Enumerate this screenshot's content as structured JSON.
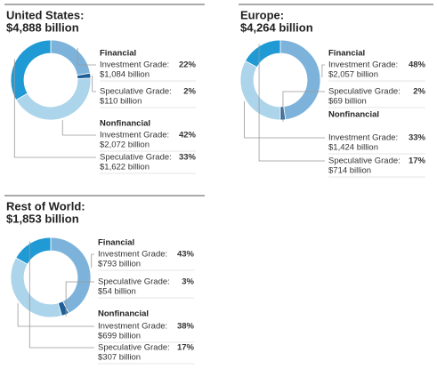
{
  "chart_data": [
    {
      "type": "donut",
      "title": "United States:",
      "subtitle": "$4,888 billion",
      "groups": [
        "Financial",
        "Nonfinancial"
      ],
      "categories": [
        "Investment Grade:",
        "Speculative Grade:",
        "Investment Grade:",
        "Speculative Grade:"
      ],
      "values": [
        22,
        2,
        42,
        33
      ],
      "value_labels": [
        "22%",
        "2%",
        "42%",
        "33%"
      ],
      "details": [
        "$1,084 billion",
        "$110 billion",
        "$2,072 billion",
        "$1,622 billion"
      ],
      "colors": [
        "#7db3db",
        "#1f5f99",
        "#acd4ea",
        "#1f9ad4"
      ]
    },
    {
      "type": "donut",
      "title": "Europe:",
      "subtitle": "$4,264 billion",
      "groups": [
        "Financial",
        "Nonfinancial"
      ],
      "categories": [
        "Investment Grade:",
        "Speculative Grade:",
        "Investment Grade:",
        "Speculative Grade:"
      ],
      "values": [
        48,
        2,
        33,
        17
      ],
      "value_labels": [
        "48%",
        "2%",
        "33%",
        "17%"
      ],
      "details": [
        "$2,057 billion",
        "$69 billion",
        "$1,424 billion",
        "$714 billion"
      ],
      "colors": [
        "#7db3db",
        "#1f5f99",
        "#acd4ea",
        "#1f9ad4"
      ]
    },
    {
      "type": "donut",
      "title": "Rest of World:",
      "subtitle": "$1,853 billion",
      "groups": [
        "Financial",
        "Nonfinancial"
      ],
      "categories": [
        "Investment Grade:",
        "Speculative Grade:",
        "Investment Grade:",
        "Speculative Grade:"
      ],
      "values": [
        43,
        3,
        38,
        17
      ],
      "value_labels": [
        "43%",
        "3%",
        "38%",
        "17%"
      ],
      "details": [
        "$793 billion",
        "$54 billion",
        "$699 billion",
        "$307 billion"
      ],
      "colors": [
        "#7db3db",
        "#1f5f99",
        "#acd4ea",
        "#1f9ad4"
      ]
    }
  ]
}
